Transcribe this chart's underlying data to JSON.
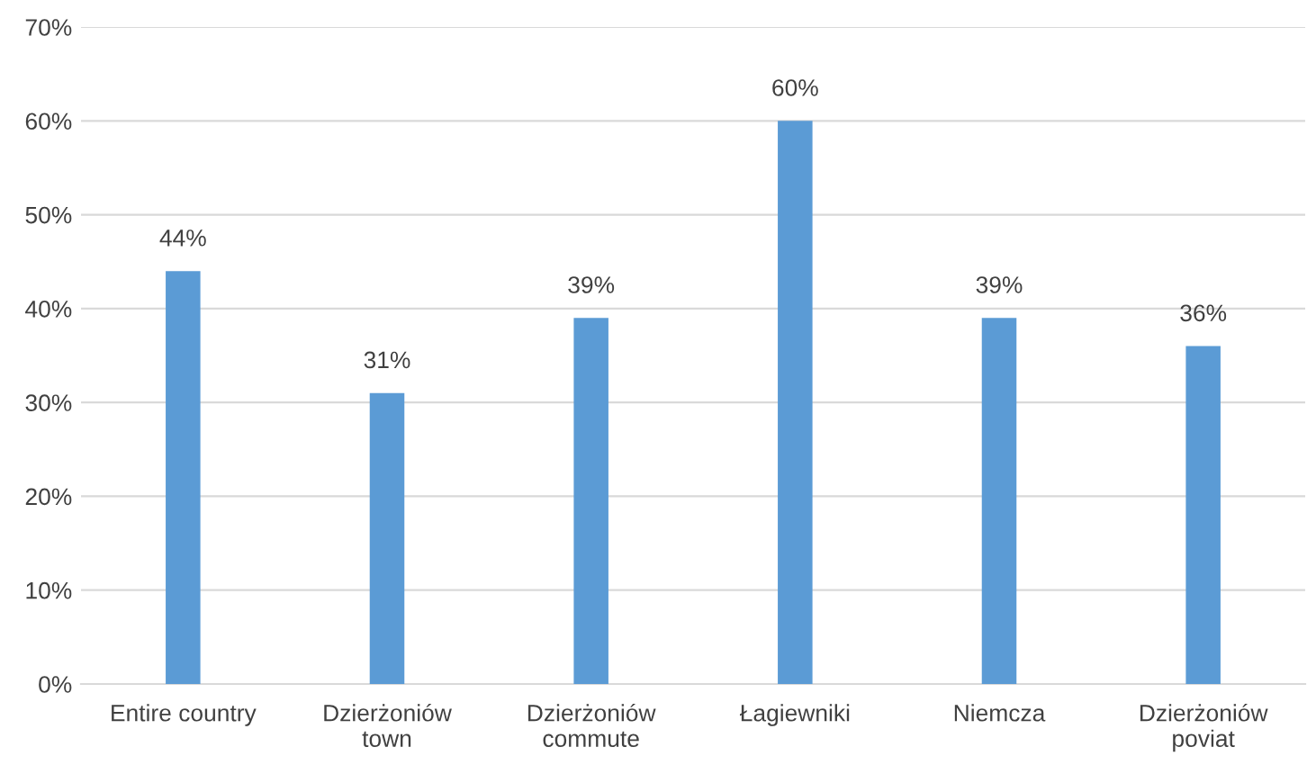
{
  "chart_data": {
    "type": "bar",
    "categories": [
      "Entire country",
      "Dzierżoniów\ntown",
      "Dzierżoniów\ncommute",
      "Łagiewniki",
      "Niemcza",
      "Dzierżoniów\npoviat"
    ],
    "values": [
      44,
      31,
      39,
      60,
      39,
      36
    ],
    "value_labels": [
      "44%",
      "31%",
      "39%",
      "60%",
      "39%",
      "36%"
    ],
    "color": "#5b9bd5",
    "ylim": [
      0,
      70
    ],
    "yticks": [
      {
        "value": 0,
        "label": "0%"
      },
      {
        "value": 10,
        "label": "10%"
      },
      {
        "value": 20,
        "label": "20%"
      },
      {
        "value": 30,
        "label": "30%"
      },
      {
        "value": 40,
        "label": "40%"
      },
      {
        "value": 50,
        "label": "50%"
      },
      {
        "value": 60,
        "label": "60%"
      },
      {
        "value": 70,
        "label": "70%"
      }
    ],
    "grid": "y",
    "legend": false
  }
}
